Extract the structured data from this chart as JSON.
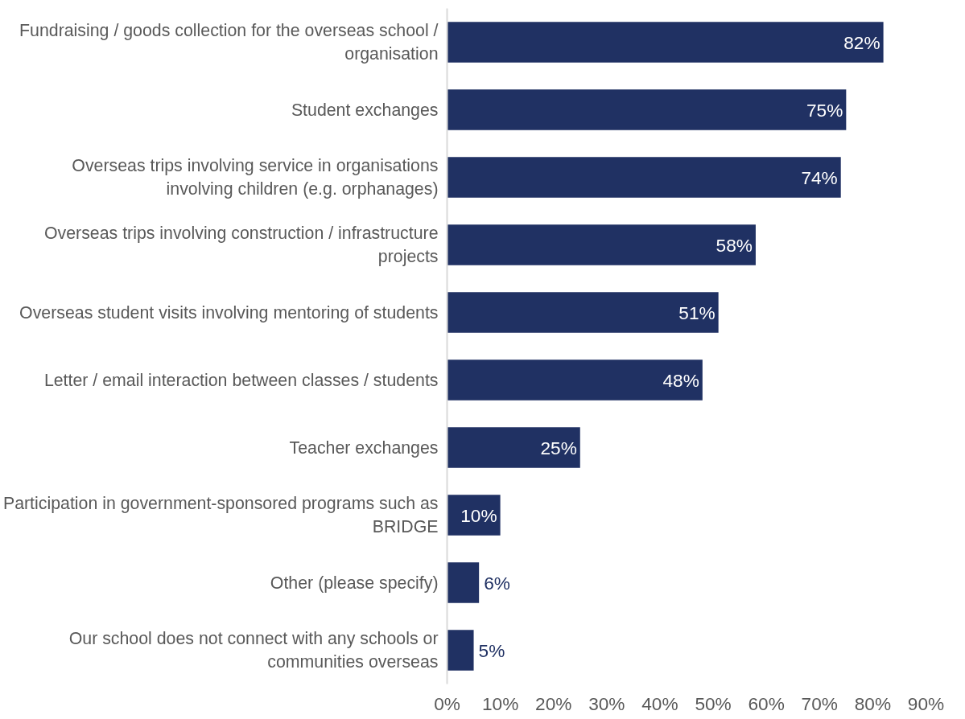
{
  "chart_data": {
    "type": "bar",
    "orientation": "horizontal",
    "categories": [
      "Fundraising / goods collection for the overseas school / organisation",
      "Student exchanges",
      "Overseas trips involving service in organisations involving children (e.g. orphanages)",
      "Overseas trips involving construction / infrastructure projects",
      "Overseas student visits involving mentoring of students",
      "Letter / email interaction between classes / students",
      "Teacher exchanges",
      "Participation in government-sponsored programs such as BRIDGE",
      "Other (please specify)",
      "Our school does not connect with any schools or communities overseas"
    ],
    "values": [
      82,
      75,
      74,
      58,
      51,
      48,
      25,
      10,
      6,
      5
    ],
    "value_labels": [
      "82%",
      "75%",
      "74%",
      "58%",
      "51%",
      "48%",
      "25%",
      "10%",
      "6%",
      "5%"
    ],
    "color": "#203163",
    "xlim": [
      0,
      90
    ],
    "xticks": [
      {
        "value": 0,
        "label": "0%"
      },
      {
        "value": 10,
        "label": "10%"
      },
      {
        "value": 20,
        "label": "20%"
      },
      {
        "value": 30,
        "label": "30%"
      },
      {
        "value": 40,
        "label": "40%"
      },
      {
        "value": 50,
        "label": "50%"
      },
      {
        "value": 60,
        "label": "60%"
      },
      {
        "value": 70,
        "label": "70%"
      },
      {
        "value": 80,
        "label": "80%"
      },
      {
        "value": 90,
        "label": "90%"
      }
    ],
    "grid": false
  }
}
